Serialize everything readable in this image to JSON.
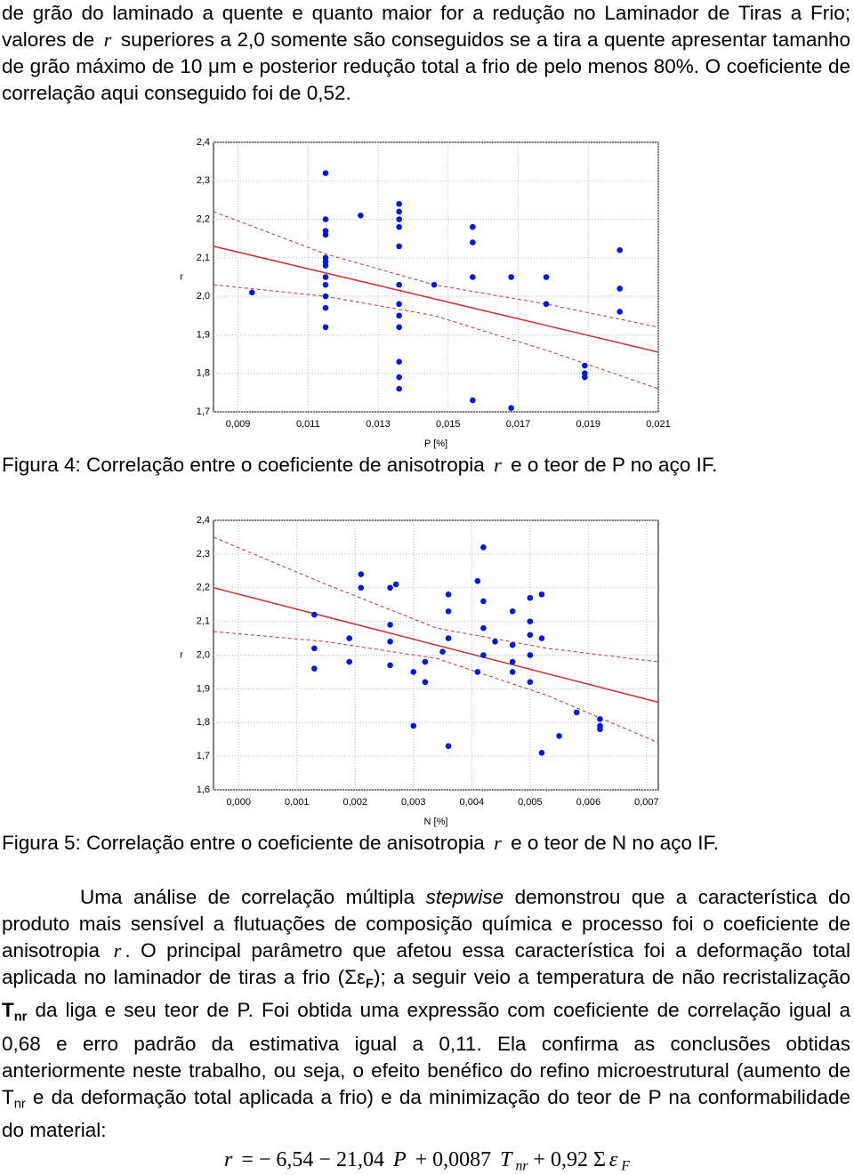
{
  "intro": [
    {
      "text": "de grão do laminado a quente e quanto maior for a redução no Laminador de Tiras a Frio; valores de "
    },
    {
      "text": "r",
      "style": "var"
    },
    {
      "text": " superiores a 2,0 somente são conseguidos se a tira a quente apresentar tamanho de grão máximo de 10 "
    },
    {
      "text": "μm",
      "style": "mu"
    },
    {
      "text": " e posterior redução total a frio de pelo menos 80%. O coeficiente de correlação aqui conseguido foi de 0,52."
    }
  ],
  "chart_data": [
    {
      "type": "scatter",
      "ylabel": "r",
      "xlabel": "P [%]",
      "grid": true,
      "color": "#0018d8",
      "xlim": [
        0.0083,
        0.021
      ],
      "ylim": [
        1.7,
        2.4
      ],
      "xticks": [
        {
          "value": 0.009,
          "label": "0,009"
        },
        {
          "value": 0.011,
          "label": "0,011"
        },
        {
          "value": 0.013,
          "label": "0,013"
        },
        {
          "value": 0.015,
          "label": "0,015"
        },
        {
          "value": 0.017,
          "label": "0,017"
        },
        {
          "value": 0.019,
          "label": "0,019"
        },
        {
          "value": 0.021,
          "label": "0,021"
        }
      ],
      "yticks": [
        {
          "value": 2.4,
          "label": "2,4"
        },
        {
          "value": 2.3,
          "label": "2,3"
        },
        {
          "value": 2.2,
          "label": "2,2"
        },
        {
          "value": 2.1,
          "label": "2,1"
        },
        {
          "value": 2.0,
          "label": "2,0"
        },
        {
          "value": 1.9,
          "label": "1,9"
        },
        {
          "value": 1.8,
          "label": "1,8"
        },
        {
          "value": 1.7,
          "label": "1,7"
        }
      ],
      "x": [
        0.0094,
        0.0115,
        0.0115,
        0.0115,
        0.0115,
        0.0115,
        0.0115,
        0.0115,
        0.0115,
        0.0115,
        0.0115,
        0.0115,
        0.0115,
        0.0125,
        0.0136,
        0.0136,
        0.0136,
        0.0136,
        0.0136,
        0.0136,
        0.0136,
        0.0136,
        0.0136,
        0.0136,
        0.0136,
        0.0136,
        0.0146,
        0.0157,
        0.0157,
        0.0157,
        0.0157,
        0.0168,
        0.0168,
        0.0178,
        0.0178,
        0.0189,
        0.0189,
        0.0189,
        0.0199,
        0.0199,
        0.0199
      ],
      "values": [
        2.01,
        2.32,
        2.2,
        2.17,
        2.16,
        2.1,
        2.09,
        2.08,
        2.05,
        2.03,
        2.0,
        1.97,
        1.92,
        2.21,
        2.24,
        2.22,
        2.2,
        2.18,
        2.13,
        2.03,
        1.98,
        1.95,
        1.92,
        1.83,
        1.79,
        1.76,
        2.03,
        2.18,
        2.14,
        2.05,
        1.73,
        2.05,
        1.71,
        2.05,
        1.98,
        1.82,
        1.8,
        1.79,
        2.12,
        2.02,
        1.96
      ],
      "fit_lines": [
        {
          "x": [
            0.0083,
            0.021
          ],
          "values": [
            2.13,
            1.855
          ],
          "color": "#c83232",
          "dashed": false
        },
        {
          "x": [
            0.0083,
            0.0115,
            0.0146,
            0.0178,
            0.021
          ],
          "values": [
            2.22,
            2.11,
            2.03,
            1.98,
            1.92
          ],
          "color": "#c83232",
          "dashed": true
        },
        {
          "x": [
            0.0083,
            0.0115,
            0.0146,
            0.0178,
            0.021
          ],
          "values": [
            2.03,
            2.0,
            1.95,
            1.86,
            1.76
          ],
          "color": "#c83232",
          "dashed": true
        }
      ]
    },
    {
      "type": "scatter",
      "ylabel": "r",
      "xlabel": "N [%]",
      "grid": true,
      "color": "#0018d8",
      "xlim": [
        -0.00043,
        0.0072
      ],
      "ylim": [
        1.6,
        2.4
      ],
      "xticks": [
        {
          "value": 0,
          "label": "0,000"
        },
        {
          "value": 0.001,
          "label": "0,001"
        },
        {
          "value": 0.002,
          "label": "0,002"
        },
        {
          "value": 0.003,
          "label": "0,003"
        },
        {
          "value": 0.004,
          "label": "0,004"
        },
        {
          "value": 0.005,
          "label": "0,005"
        },
        {
          "value": 0.006,
          "label": "0,006"
        },
        {
          "value": 0.007,
          "label": "0,007"
        }
      ],
      "yticks": [
        {
          "value": 2.4,
          "label": "2,4"
        },
        {
          "value": 2.3,
          "label": "2,3"
        },
        {
          "value": 2.2,
          "label": "2,2"
        },
        {
          "value": 2.1,
          "label": "2,1"
        },
        {
          "value": 2.0,
          "label": "2,0"
        },
        {
          "value": 1.9,
          "label": "1,9"
        },
        {
          "value": 1.8,
          "label": "1,8"
        },
        {
          "value": 1.7,
          "label": "1,7"
        },
        {
          "value": 1.6,
          "label": "1,6"
        }
      ],
      "x": [
        0.0013,
        0.0013,
        0.0013,
        0.0019,
        0.0019,
        0.0021,
        0.0021,
        0.0026,
        0.0026,
        0.0026,
        0.0026,
        0.0027,
        0.003,
        0.003,
        0.0032,
        0.0032,
        0.0035,
        0.0036,
        0.0036,
        0.0036,
        0.0036,
        0.0041,
        0.0041,
        0.0042,
        0.0042,
        0.0042,
        0.0042,
        0.0044,
        0.0047,
        0.0047,
        0.0047,
        0.0047,
        0.005,
        0.005,
        0.005,
        0.005,
        0.005,
        0.0052,
        0.0052,
        0.0052,
        0.0055,
        0.0058,
        0.0062,
        0.0062,
        0.0062
      ],
      "values": [
        2.12,
        2.02,
        1.96,
        2.05,
        1.98,
        2.24,
        2.2,
        2.2,
        2.09,
        2.04,
        1.97,
        2.21,
        1.95,
        1.79,
        1.98,
        1.92,
        2.01,
        2.18,
        2.13,
        2.05,
        1.73,
        2.22,
        1.95,
        2.32,
        2.16,
        2.08,
        2.0,
        2.04,
        2.13,
        2.03,
        1.98,
        1.95,
        2.17,
        2.1,
        2.06,
        2.0,
        1.92,
        2.18,
        2.05,
        1.71,
        1.76,
        1.83,
        1.81,
        1.79,
        1.78
      ],
      "fit_lines": [
        {
          "x": [
            -0.00043,
            0.0072
          ],
          "values": [
            2.2,
            1.86
          ],
          "color": "#c83232",
          "dashed": false
        },
        {
          "x": [
            -0.00043,
            0.0015,
            0.0034,
            0.0053,
            0.0072
          ],
          "values": [
            2.35,
            2.21,
            2.08,
            2.02,
            1.98
          ],
          "color": "#c83232",
          "dashed": true
        },
        {
          "x": [
            -0.00043,
            0.0015,
            0.0034,
            0.0053,
            0.0072
          ],
          "values": [
            2.07,
            2.04,
            1.99,
            1.88,
            1.74
          ],
          "color": "#c83232",
          "dashed": true
        }
      ]
    }
  ],
  "captions": [
    [
      {
        "text": "Figura 4: Correlação entre o coeficiente de anisotropia "
      },
      {
        "text": "r",
        "style": "var"
      },
      {
        "text": " e o teor de P no aço IF."
      }
    ],
    [
      {
        "text": "Figura 5: Correlação entre o coeficiente de anisotropia "
      },
      {
        "text": "r",
        "style": "var"
      },
      {
        "text": " e o teor de N no aço IF."
      }
    ]
  ],
  "body": [
    {
      "text": "Uma análise de correlação múltipla "
    },
    {
      "text": "stepwise",
      "style": "i"
    },
    {
      "text": " demonstrou que a característica do produto mais sensível a flutuações de composição química e processo foi o coeficiente de anisotropia "
    },
    {
      "text": "r",
      "style": "var"
    },
    {
      "text": ". O principal parâmetro que afetou essa característica foi a deformação total aplicada no laminador de tiras a frio ("
    },
    {
      "text": "Σε",
      "style": "plain"
    },
    {
      "text": "F",
      "style": "bsub"
    },
    {
      "text": "); a seguir veio a temperatura de não recristalização "
    },
    {
      "text": "T",
      "style": "b"
    },
    {
      "text": "nr",
      "style": "bsub"
    },
    {
      "text": " da liga e seu teor de P. Foi obtida uma expressão com coeficiente de correlação igual a 0,68 e erro padrão da estimativa igual a 0,11. Ela confirma as conclusões obtidas anteriormente neste trabalho, ou seja, o efeito benéfico do refino microestrutural (aumento de T"
    },
    {
      "text": "nr",
      "style": "sub"
    },
    {
      "text": " e da deformação total aplicada a frio) e da minimização do teor de P na conformabilidade do material:"
    }
  ],
  "equation": [
    {
      "text": "r",
      "style": "var"
    },
    {
      "text": " = − 6,54 − 21,04 ",
      "style": "serif"
    },
    {
      "text": "P",
      "style": "var"
    },
    {
      "text": " + 0,0087 ",
      "style": "serif"
    },
    {
      "text": "T",
      "style": "var"
    },
    {
      "text": "nr",
      "style": "varsub"
    },
    {
      "text": " + 0,92 Σ",
      "style": "serif"
    },
    {
      "text": "ε",
      "style": "var"
    },
    {
      "text": "F",
      "style": "varsub"
    }
  ]
}
